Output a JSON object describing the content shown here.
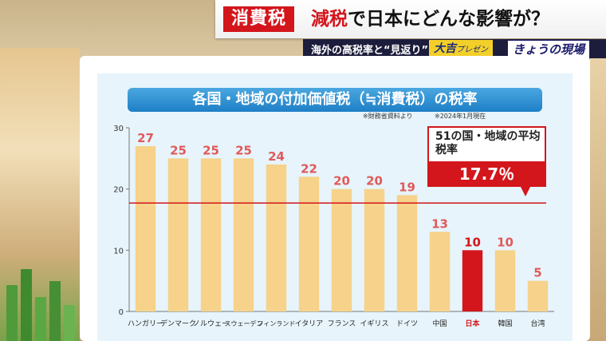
{
  "header": {
    "tag": "消費税",
    "title_highlight": "減税",
    "title_rest": "で日本にどんな影響が？",
    "subtitle": "海外の高税率と“見返り”",
    "logo_main": "大吉",
    "logo_sub": "プレゼン",
    "program": "きょうの現場"
  },
  "board": {
    "title": "各国・地域の付加価値税（≒消費税）の税率",
    "source_note": "※財務省資料より",
    "date_note": "※2024年1月現在",
    "average_label": "51の国・地域の平均税率",
    "average_value": "17.7％"
  },
  "colors": {
    "bar": "#f6d28a",
    "highlight_bar": "#d3161c",
    "average_line": "#d3161c",
    "title_bar": "#1f7fc6",
    "label_text": "#e05a5a",
    "highlight_label": "#d3161c"
  },
  "chart_data": {
    "type": "bar",
    "title": "各国・地域の付加価値税（≒消費税）の税率",
    "categories": [
      "ハンガリー",
      "デンマーク",
      "ノルウェー",
      "スウェーデン",
      "フィンランド",
      "イタリア",
      "フランス",
      "イギリス",
      "ドイツ",
      "中国",
      "日本",
      "韓国",
      "台湾"
    ],
    "values": [
      27,
      25,
      25,
      25,
      24,
      22,
      20,
      20,
      19,
      13,
      10,
      10,
      5
    ],
    "highlight_category": "日本",
    "ylim": [
      0,
      30
    ],
    "yticks": [
      0,
      10,
      20,
      30
    ],
    "reference_line": 17.7,
    "grid": false,
    "legend": "none"
  }
}
